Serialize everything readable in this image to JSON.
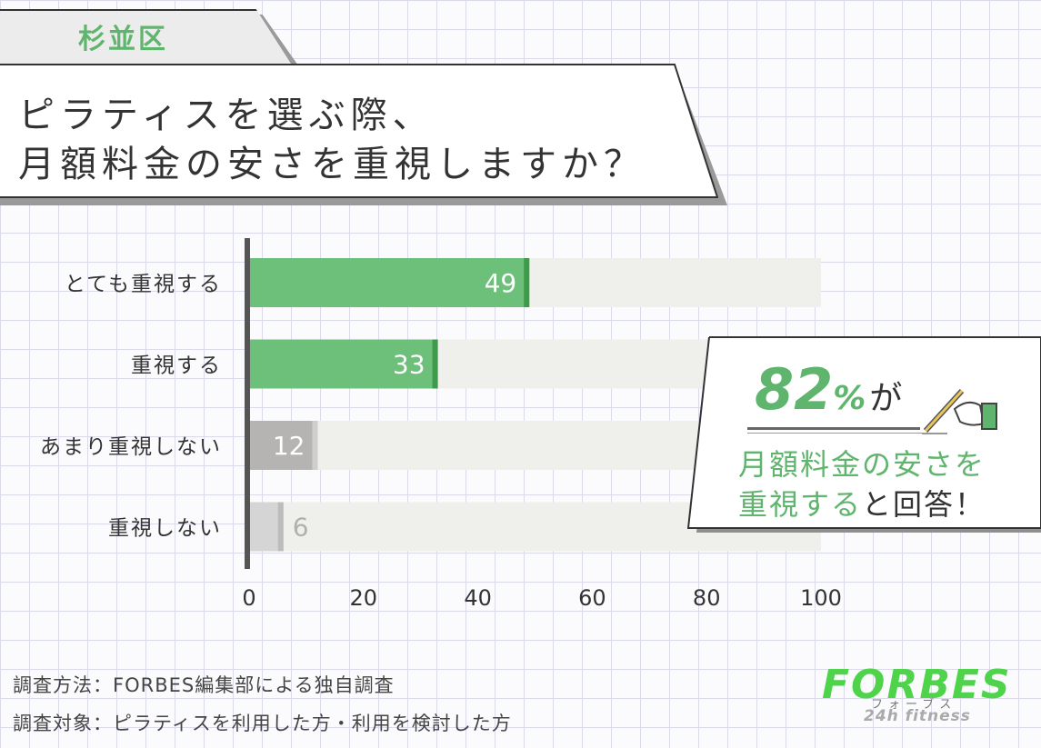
{
  "header": {
    "tag": "杉並区",
    "title_line1": "ピラティスを選ぶ際、",
    "title_line2": "月額料金の安さを重視しますか？"
  },
  "chart_data": {
    "type": "bar",
    "orientation": "horizontal",
    "categories": [
      "とても重視する",
      "重視する",
      "あまり重視しない",
      "重視しない"
    ],
    "values": [
      49,
      33,
      12,
      6
    ],
    "xlim": [
      0,
      100
    ],
    "xticks": [
      0,
      20,
      40,
      60,
      80,
      100
    ],
    "grid": false,
    "colors": [
      "#6cc07a",
      "#6cc07a",
      "#b6b3b3",
      "#d6d5d5"
    ],
    "label_colors": [
      "#ffffff",
      "#ffffff",
      "#ffffff",
      "#b0b0b0"
    ]
  },
  "callout": {
    "percent": "82",
    "percent_unit": "%",
    "particle": "が",
    "line1": "月額料金の安さを",
    "line2_highlight": "重視する",
    "line2_rest": "と回答！",
    "icon": "pencil-hand-icon"
  },
  "notes": {
    "method": "調査方法：FORBES編集部による独自調査",
    "target": "調査対象：ピラティスを利用した方・利用を検討した方"
  },
  "logo": {
    "main": "FORBES",
    "kana": "フォーブス",
    "sub": "24h fitness"
  }
}
